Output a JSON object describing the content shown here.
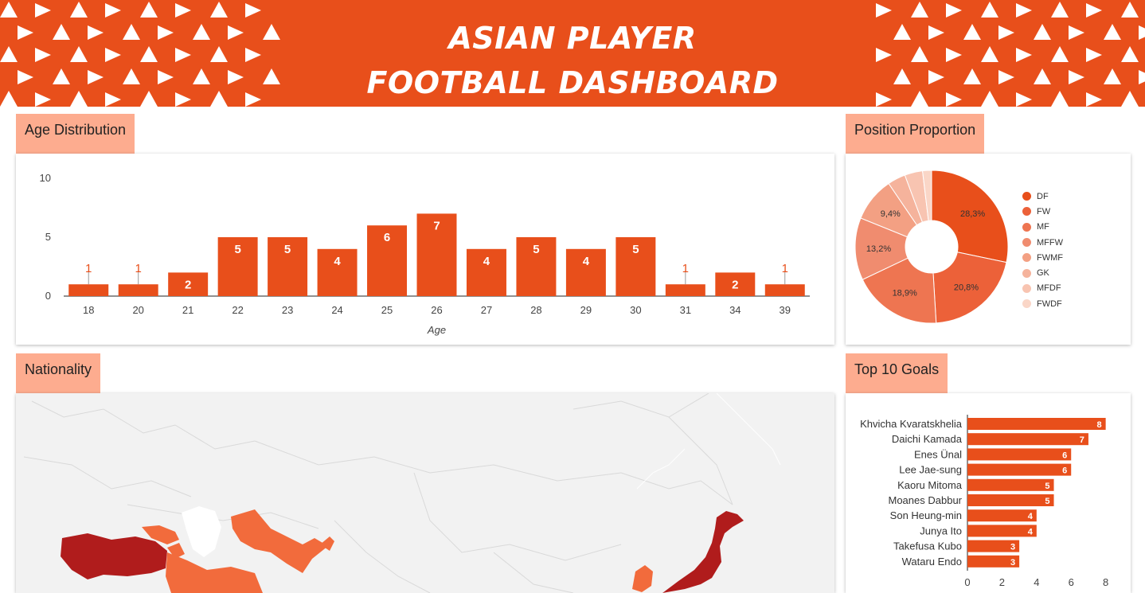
{
  "header": {
    "title_line1": "ASIAN PLAYER",
    "title_line2": "FOOTBALL DASHBOARD"
  },
  "colors": {
    "brand": "#e84f1b",
    "label_bg": "#fdac8f",
    "map_dark": "#b01c1c",
    "map_light": "#f26b3c"
  },
  "age_section": {
    "label": "Age Distribution"
  },
  "position_section": {
    "label": "Position Proportion"
  },
  "nationality_section": {
    "label": "Nationality"
  },
  "goals_section": {
    "label": "Top 10 Goals"
  },
  "chart_data": [
    {
      "type": "bar",
      "categories": [
        "18",
        "20",
        "21",
        "22",
        "23",
        "24",
        "25",
        "26",
        "27",
        "28",
        "29",
        "30",
        "31",
        "34",
        "39"
      ],
      "values": [
        1,
        1,
        2,
        5,
        5,
        4,
        6,
        7,
        4,
        5,
        4,
        5,
        1,
        2,
        1
      ],
      "xlabel": "Age",
      "ylabel": "",
      "ylim": [
        0,
        10
      ],
      "yticks": [
        0,
        5,
        10
      ],
      "color": "#e84f1b"
    },
    {
      "type": "pie",
      "donut": true,
      "categories": [
        "DF",
        "FW",
        "MF",
        "MFFW",
        "FWMF",
        "GK",
        "MFDF",
        "FWDF"
      ],
      "values": [
        28.3,
        20.8,
        18.9,
        13.2,
        9.4,
        3.8,
        3.8,
        1.9
      ],
      "labels": [
        "28,3%",
        "20,8%",
        "18,9%",
        "13,2%",
        "9,4%",
        "",
        "",
        ""
      ],
      "colors": [
        "#e84f1b",
        "#ec6139",
        "#ee7551",
        "#f08c6f",
        "#f3a083",
        "#f5b39c",
        "#f8c4b1",
        "#fad6c7"
      ],
      "legend": "right"
    },
    {
      "type": "bar",
      "orientation": "horizontal",
      "categories": [
        "Khvicha Kvaratskhelia",
        "Daichi Kamada",
        "Enes Ünal",
        "Lee Jae-sung",
        "Kaoru Mitoma",
        "Moanes Dabbur",
        "Son Heung-min",
        "Junya Ito",
        "Takefusa Kubo",
        "Wataru Endo"
      ],
      "values": [
        8,
        7,
        6,
        6,
        5,
        5,
        4,
        4,
        3,
        3
      ],
      "xticks": [
        0,
        2,
        4,
        6,
        8
      ],
      "xlim": [
        0,
        8.8
      ],
      "color": "#e84f1b"
    }
  ]
}
